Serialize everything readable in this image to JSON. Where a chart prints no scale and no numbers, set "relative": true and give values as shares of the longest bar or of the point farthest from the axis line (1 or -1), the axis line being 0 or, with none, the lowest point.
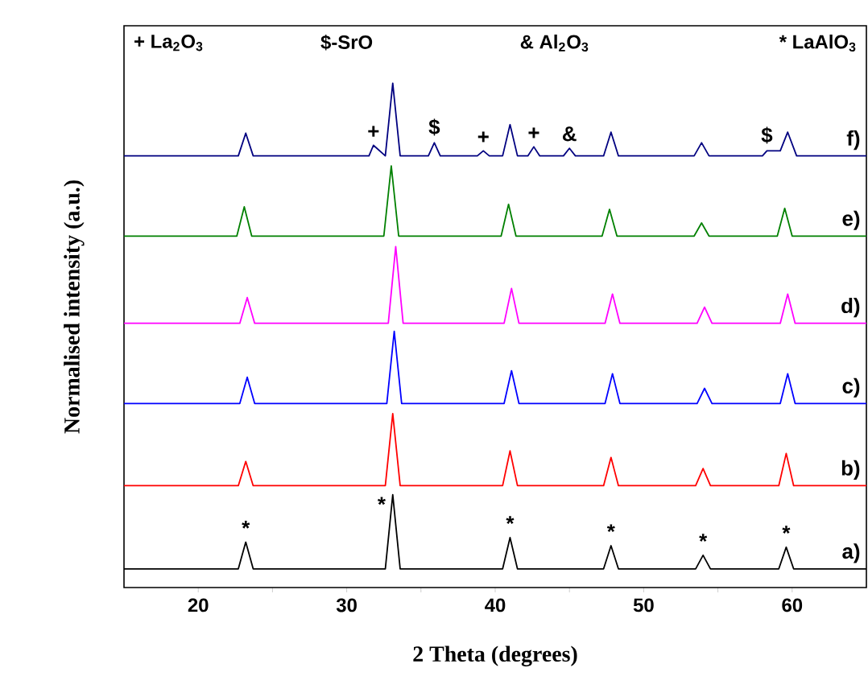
{
  "chart_data": {
    "type": "line",
    "relative": true,
    "xlabel": "2 Theta (degrees)",
    "ylabel": "Normalised intensity (a.u.)",
    "xlim": [
      15,
      65
    ],
    "xticks": [
      20,
      {
        "value": 25,
        "label": null
      },
      30,
      {
        "value": 35,
        "label": null
      },
      40,
      {
        "value": 45,
        "label": null
      },
      50,
      {
        "value": 55,
        "label": null
      },
      60
    ],
    "tick_labels": "x",
    "grid": false,
    "marker": "none",
    "line_style": "solid",
    "series": [
      {
        "name": "a)",
        "color": "#000000",
        "x": [
          15,
          22.7,
          23.2,
          23.7,
          32.6,
          33.1,
          33.6,
          40.5,
          41.0,
          41.5,
          47.3,
          47.8,
          48.3,
          53.5,
          54.0,
          54.5,
          59.1,
          59.6,
          60.1,
          65
        ],
        "values": [
          0.037,
          0.037,
          0.09,
          0.037,
          0.037,
          0.184,
          0.037,
          0.037,
          0.099,
          0.037,
          0.037,
          0.083,
          0.037,
          0.037,
          0.064,
          0.037,
          0.037,
          0.08,
          0.037,
          0.037
        ]
      },
      {
        "name": "b)",
        "color": "#ff0000",
        "x": [
          15,
          22.7,
          23.2,
          23.7,
          32.6,
          33.1,
          33.6,
          40.5,
          41.0,
          41.5,
          47.3,
          47.8,
          48.3,
          53.5,
          54.0,
          54.5,
          59.1,
          59.6,
          60.1,
          65
        ],
        "values": [
          0.202,
          0.202,
          0.25,
          0.202,
          0.202,
          0.345,
          0.202,
          0.202,
          0.271,
          0.202,
          0.202,
          0.258,
          0.202,
          0.202,
          0.236,
          0.202,
          0.202,
          0.266,
          0.202,
          0.202
        ]
      },
      {
        "name": "c)",
        "color": "#0000ff",
        "x": [
          15,
          22.8,
          23.3,
          23.8,
          32.7,
          33.2,
          33.7,
          40.6,
          41.1,
          41.6,
          47.4,
          47.9,
          48.4,
          53.6,
          54.1,
          54.6,
          59.2,
          59.7,
          60.2,
          65
        ],
        "values": [
          0.365,
          0.365,
          0.417,
          0.365,
          0.365,
          0.508,
          0.365,
          0.365,
          0.43,
          0.365,
          0.365,
          0.424,
          0.365,
          0.365,
          0.395,
          0.365,
          0.365,
          0.424,
          0.365,
          0.365
        ]
      },
      {
        "name": "d)",
        "color": "#ff00ff",
        "x": [
          15,
          22.8,
          23.3,
          23.8,
          32.8,
          33.3,
          33.8,
          40.6,
          41.1,
          41.6,
          47.4,
          47.9,
          48.4,
          53.6,
          54.1,
          54.6,
          59.2,
          59.7,
          60.2,
          65
        ],
        "values": [
          0.524,
          0.524,
          0.575,
          0.524,
          0.524,
          0.676,
          0.524,
          0.524,
          0.593,
          0.524,
          0.524,
          0.582,
          0.524,
          0.524,
          0.556,
          0.524,
          0.524,
          0.582,
          0.524,
          0.524
        ]
      },
      {
        "name": "e)",
        "color": "#008000",
        "x": [
          15,
          22.6,
          23.1,
          23.6,
          32.5,
          33.0,
          33.5,
          40.4,
          40.9,
          41.4,
          47.2,
          47.7,
          48.2,
          53.4,
          53.9,
          54.4,
          59.0,
          59.5,
          60.0,
          65
        ],
        "values": [
          0.697,
          0.697,
          0.755,
          0.697,
          0.697,
          0.836,
          0.697,
          0.697,
          0.76,
          0.697,
          0.697,
          0.75,
          0.697,
          0.697,
          0.723,
          0.697,
          0.697,
          0.752,
          0.697,
          0.697
        ]
      },
      {
        "name": "f)",
        "color": "#000080",
        "x": [
          15,
          22.7,
          23.2,
          23.7,
          31.5,
          31.8,
          32.6,
          33.1,
          33.6,
          35.5,
          35.9,
          36.3,
          38.8,
          39.2,
          39.6,
          40.5,
          41.0,
          41.5,
          42.2,
          42.6,
          43.0,
          44.6,
          45.0,
          45.4,
          47.3,
          47.8,
          48.3,
          53.4,
          53.9,
          54.4,
          58.0,
          58.3,
          59.2,
          59.7,
          60.3,
          65
        ],
        "values": [
          0.856,
          0.856,
          0.901,
          0.856,
          0.856,
          0.877,
          0.856,
          1.0,
          0.856,
          0.856,
          0.882,
          0.856,
          0.856,
          0.866,
          0.856,
          0.856,
          0.918,
          0.856,
          0.856,
          0.874,
          0.856,
          0.856,
          0.871,
          0.856,
          0.856,
          0.903,
          0.856,
          0.856,
          0.882,
          0.856,
          0.856,
          0.866,
          0.866,
          0.903,
          0.856,
          0.856
        ]
      }
    ],
    "annotations": [
      "+ La$_{2}$O$_{3}$",
      "$-SrO",
      "& Al$_{2}$O$_{3}$",
      "* LaAlO$_{3}$",
      {
        "text": "*",
        "x": 23.2,
        "y": 0.09
      },
      {
        "text": "*",
        "x": 33.1,
        "y": 0.184
      },
      {
        "text": "*",
        "x": 41.0,
        "y": 0.099
      },
      {
        "text": "*",
        "x": 47.8,
        "y": 0.083
      },
      {
        "text": "*",
        "x": 54.0,
        "y": 0.064
      },
      {
        "text": "*",
        "x": 59.6,
        "y": 0.08
      },
      {
        "text": "+",
        "x": 31.8,
        "y": 0.877
      },
      {
        "text": "$",
        "x": 35.9,
        "y": 0.882
      },
      {
        "text": "+",
        "x": 39.2,
        "y": 0.866
      },
      {
        "text": "+",
        "x": 42.6,
        "y": 0.874
      },
      {
        "text": "&",
        "x": 45.0,
        "y": 0.871
      },
      {
        "text": "$",
        "x": 58.3,
        "y": 0.866
      }
    ]
  }
}
